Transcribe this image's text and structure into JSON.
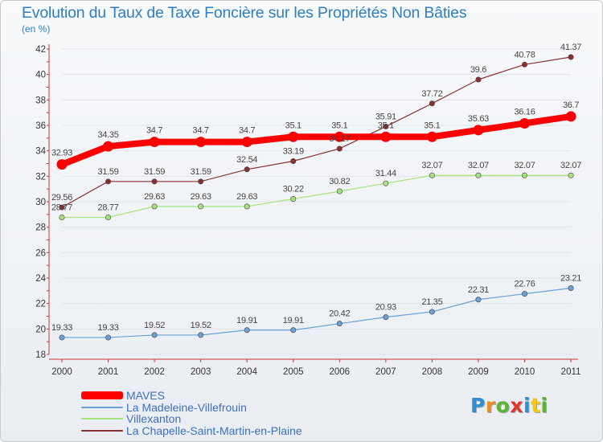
{
  "title": "Evolution du Taux de Taxe Foncière sur les Propriétés Non Bâties",
  "unit_label": "(en %)",
  "logo": {
    "text": "Proxiti",
    "colors": [
      "#2d8fd5",
      "#f08c1e",
      "#5cb531",
      "#e5352d",
      "#2d8fd5",
      "#f5c518",
      "#5cb531"
    ]
  },
  "chart_data": {
    "type": "line",
    "title": "Evolution du Taux de Taxe Foncière sur les Propriétés Non Bâties",
    "ylabel": "(en %)",
    "xlabel": "",
    "ylim": [
      18,
      42
    ],
    "yticks": [
      "18",
      "20",
      "22",
      "24",
      "26",
      "28",
      "30",
      "32",
      "34",
      "36",
      "38",
      "40",
      "42"
    ],
    "categories": [
      "2000",
      "2001",
      "2002",
      "2003",
      "2004",
      "2005",
      "2006",
      "2007",
      "2008",
      "2009",
      "2010",
      "2011"
    ],
    "series": [
      {
        "name": "MAVES",
        "color": "#ff0000",
        "emphasis": true,
        "values": [
          32.93,
          34.35,
          34.7,
          34.7,
          34.7,
          35.1,
          35.1,
          35.1,
          35.1,
          35.63,
          36.16,
          36.7
        ],
        "labels": [
          "32.93",
          "34.35",
          "34.7",
          "34.7",
          "34.7",
          "35.1",
          "35.1",
          "35.1",
          "35.1",
          "35.63",
          "36.16",
          "36.7"
        ]
      },
      {
        "name": "La Madeleine-Villefrouin",
        "color": "#6aa0d6",
        "emphasis": false,
        "values": [
          19.33,
          19.33,
          19.52,
          19.52,
          19.91,
          19.91,
          20.42,
          20.93,
          21.35,
          22.31,
          22.76,
          23.21
        ],
        "labels": [
          "19.33",
          "19.33",
          "19.52",
          "19.52",
          "19.91",
          "19.91",
          "20.42",
          "20.93",
          "21.35",
          "22.31",
          "22.76",
          "23.21"
        ]
      },
      {
        "name": "Villexanton",
        "color": "#a6e27b",
        "emphasis": false,
        "values": [
          28.77,
          28.77,
          29.63,
          29.63,
          29.63,
          30.22,
          30.82,
          31.44,
          32.07,
          32.07,
          32.07,
          32.07
        ],
        "labels": [
          "28.77",
          "28.77",
          "29.63",
          "29.63",
          "29.63",
          "30.22",
          "30.82",
          "31.44",
          "32.07",
          "32.07",
          "32.07",
          "32.07"
        ]
      },
      {
        "name": "La Chapelle-Saint-Martin-en-Plaine",
        "color": "#8b2f2f",
        "emphasis": false,
        "values": [
          29.56,
          31.59,
          31.59,
          31.59,
          32.54,
          33.19,
          34.17,
          35.91,
          37.72,
          39.6,
          40.78,
          41.37
        ],
        "labels": [
          "29.56",
          "31.59",
          "31.59",
          "31.59",
          "32.54",
          "33.19",
          "34.17",
          "35.91",
          "37.72",
          "39.6",
          "40.78",
          "41.37"
        ]
      }
    ]
  }
}
